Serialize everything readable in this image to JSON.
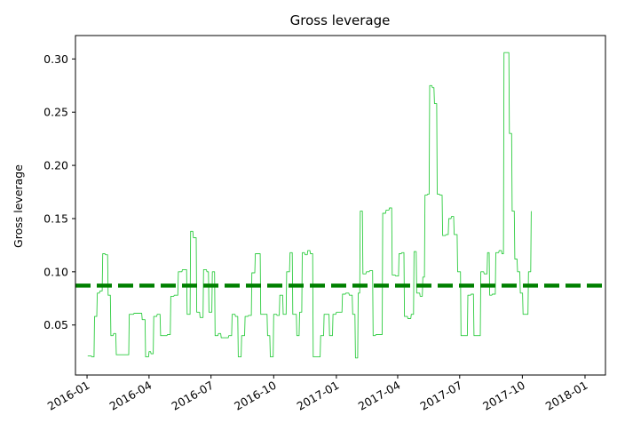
{
  "chart_data": {
    "type": "line",
    "title": "Gross leverage",
    "xlabel": "",
    "ylabel": "Gross leverage",
    "x_ticks": [
      "2016-01",
      "2016-04",
      "2016-07",
      "2016-10",
      "2017-01",
      "2017-04",
      "2017-07",
      "2017-10",
      "2018-01"
    ],
    "y_ticks": [
      "0.05",
      "0.10",
      "0.15",
      "0.20",
      "0.25",
      "0.30"
    ],
    "xlim": [
      "2015-12-15",
      "2018-01-31"
    ],
    "ylim": [
      0.003,
      0.322
    ],
    "grid": false,
    "colors": {
      "series": "#2ecc40",
      "mean_line": "#008000"
    },
    "mean_value": 0.087,
    "series": [
      {
        "line_style": "thin solid",
        "points": [
          [
            "2016-01-02",
            0.021
          ],
          [
            "2016-01-08",
            0.02
          ],
          [
            "2016-01-12",
            0.058
          ],
          [
            "2016-01-16",
            0.08
          ],
          [
            "2016-01-20",
            0.082
          ],
          [
            "2016-01-24",
            0.117
          ],
          [
            "2016-01-28",
            0.116
          ],
          [
            "2016-02-01",
            0.078
          ],
          [
            "2016-02-05",
            0.04
          ],
          [
            "2016-02-09",
            0.042
          ],
          [
            "2016-02-13",
            0.022
          ],
          [
            "2016-02-20",
            0.022
          ],
          [
            "2016-02-27",
            0.022
          ],
          [
            "2016-03-03",
            0.06
          ],
          [
            "2016-03-10",
            0.061
          ],
          [
            "2016-03-17",
            0.061
          ],
          [
            "2016-03-22",
            0.055
          ],
          [
            "2016-03-27",
            0.02
          ],
          [
            "2016-04-01",
            0.025
          ],
          [
            "2016-04-04",
            0.023
          ],
          [
            "2016-04-08",
            0.058
          ],
          [
            "2016-04-13",
            0.06
          ],
          [
            "2016-04-18",
            0.04
          ],
          [
            "2016-04-28",
            0.041
          ],
          [
            "2016-05-03",
            0.077
          ],
          [
            "2016-05-08",
            0.078
          ],
          [
            "2016-05-14",
            0.1
          ],
          [
            "2016-05-20",
            0.102
          ],
          [
            "2016-05-27",
            0.06
          ],
          [
            "2016-06-01",
            0.138
          ],
          [
            "2016-06-05",
            0.132
          ],
          [
            "2016-06-10",
            0.062
          ],
          [
            "2016-06-15",
            0.057
          ],
          [
            "2016-06-20",
            0.102
          ],
          [
            "2016-06-25",
            0.1
          ],
          [
            "2016-06-28",
            0.062
          ],
          [
            "2016-07-03",
            0.1
          ],
          [
            "2016-07-07",
            0.04
          ],
          [
            "2016-07-12",
            0.042
          ],
          [
            "2016-07-16",
            0.038
          ],
          [
            "2016-07-27",
            0.04
          ],
          [
            "2016-08-01",
            0.06
          ],
          [
            "2016-08-06",
            0.058
          ],
          [
            "2016-08-10",
            0.02
          ],
          [
            "2016-08-15",
            0.04
          ],
          [
            "2016-08-20",
            0.058
          ],
          [
            "2016-08-25",
            0.059
          ],
          [
            "2016-08-30",
            0.099
          ],
          [
            "2016-09-04",
            0.117
          ],
          [
            "2016-09-08",
            0.117
          ],
          [
            "2016-09-12",
            0.06
          ],
          [
            "2016-09-18",
            0.06
          ],
          [
            "2016-09-22",
            0.04
          ],
          [
            "2016-09-26",
            0.02
          ],
          [
            "2016-10-01",
            0.06
          ],
          [
            "2016-10-06",
            0.059
          ],
          [
            "2016-10-10",
            0.078
          ],
          [
            "2016-10-15",
            0.06
          ],
          [
            "2016-10-20",
            0.1
          ],
          [
            "2016-10-25",
            0.118
          ],
          [
            "2016-10-29",
            0.06
          ],
          [
            "2016-11-04",
            0.04
          ],
          [
            "2016-11-08",
            0.062
          ],
          [
            "2016-11-12",
            0.118
          ],
          [
            "2016-11-16",
            0.116
          ],
          [
            "2016-11-20",
            0.12
          ],
          [
            "2016-11-24",
            0.117
          ],
          [
            "2016-11-28",
            0.02
          ],
          [
            "2016-12-03",
            0.02
          ],
          [
            "2016-12-09",
            0.04
          ],
          [
            "2016-12-14",
            0.06
          ],
          [
            "2016-12-17",
            0.06
          ],
          [
            "2016-12-22",
            0.04
          ],
          [
            "2016-12-27",
            0.06
          ],
          [
            "2017-01-01",
            0.062
          ],
          [
            "2017-01-05",
            0.062
          ],
          [
            "2017-01-10",
            0.079
          ],
          [
            "2017-01-15",
            0.08
          ],
          [
            "2017-01-20",
            0.078
          ],
          [
            "2017-01-25",
            0.06
          ],
          [
            "2017-01-29",
            0.019
          ],
          [
            "2017-02-02",
            0.08
          ],
          [
            "2017-02-05",
            0.157
          ],
          [
            "2017-02-09",
            0.098
          ],
          [
            "2017-02-14",
            0.1
          ],
          [
            "2017-02-19",
            0.101
          ],
          [
            "2017-02-24",
            0.04
          ],
          [
            "2017-02-28",
            0.041
          ],
          [
            "2017-03-05",
            0.041
          ],
          [
            "2017-03-10",
            0.155
          ],
          [
            "2017-03-15",
            0.158
          ],
          [
            "2017-03-20",
            0.16
          ],
          [
            "2017-03-24",
            0.097
          ],
          [
            "2017-03-29",
            0.096
          ],
          [
            "2017-04-03",
            0.117
          ],
          [
            "2017-04-07",
            0.118
          ],
          [
            "2017-04-11",
            0.058
          ],
          [
            "2017-04-16",
            0.056
          ],
          [
            "2017-04-21",
            0.06
          ],
          [
            "2017-04-25",
            0.119
          ],
          [
            "2017-04-29",
            0.08
          ],
          [
            "2017-05-04",
            0.077
          ],
          [
            "2017-05-08",
            0.095
          ],
          [
            "2017-05-11",
            0.172
          ],
          [
            "2017-05-15",
            0.173
          ],
          [
            "2017-05-18",
            0.275
          ],
          [
            "2017-05-22",
            0.273
          ],
          [
            "2017-05-25",
            0.258
          ],
          [
            "2017-05-29",
            0.173
          ],
          [
            "2017-06-02",
            0.172
          ],
          [
            "2017-06-06",
            0.134
          ],
          [
            "2017-06-11",
            0.135
          ],
          [
            "2017-06-15",
            0.15
          ],
          [
            "2017-06-19",
            0.152
          ],
          [
            "2017-06-23",
            0.135
          ],
          [
            "2017-06-28",
            0.1
          ],
          [
            "2017-07-03",
            0.04
          ],
          [
            "2017-07-08",
            0.04
          ],
          [
            "2017-07-13",
            0.078
          ],
          [
            "2017-07-18",
            0.079
          ],
          [
            "2017-07-22",
            0.04
          ],
          [
            "2017-07-27",
            0.04
          ],
          [
            "2017-08-01",
            0.1
          ],
          [
            "2017-08-06",
            0.098
          ],
          [
            "2017-08-11",
            0.118
          ],
          [
            "2017-08-14",
            0.078
          ],
          [
            "2017-08-18",
            0.079
          ],
          [
            "2017-08-23",
            0.118
          ],
          [
            "2017-08-28",
            0.12
          ],
          [
            "2017-09-01",
            0.117
          ],
          [
            "2017-09-04",
            0.306
          ],
          [
            "2017-09-08",
            0.306
          ],
          [
            "2017-09-12",
            0.23
          ],
          [
            "2017-09-16",
            0.157
          ],
          [
            "2017-09-20",
            0.112
          ],
          [
            "2017-09-24",
            0.1
          ],
          [
            "2017-09-28",
            0.08
          ],
          [
            "2017-10-02",
            0.06
          ],
          [
            "2017-10-06",
            0.06
          ],
          [
            "2017-10-10",
            0.1
          ],
          [
            "2017-10-14",
            0.157
          ]
        ]
      }
    ]
  }
}
